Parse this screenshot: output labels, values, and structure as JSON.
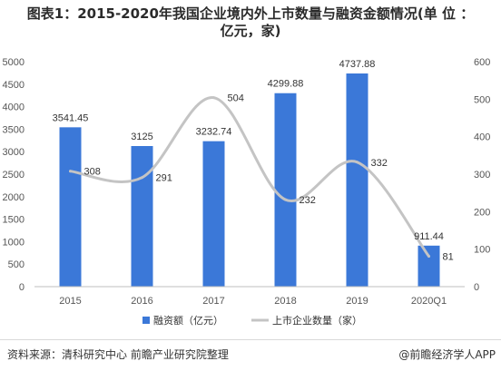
{
  "title_line1": "图表1：2015-2020年我国企业境内外上市数量与融资金额情况(单 位 ：",
  "title_line2": "亿元，家)",
  "source": "资料来源：清科研究中心 前瞻产业研究院整理",
  "credit": "@前瞻经济学人APP",
  "chart_data": {
    "type": "bar",
    "categories": [
      "2015",
      "2016",
      "2017",
      "2018",
      "2019",
      "2020Q1"
    ],
    "series": [
      {
        "name": "融资额（亿元）",
        "type": "bar",
        "axis": "left",
        "values": [
          3541.45,
          3125,
          3232.74,
          4299.88,
          4737.88,
          911.44
        ],
        "labels": [
          "3541.45",
          "3125",
          "3232.74",
          "4299.88",
          "4737.88",
          "911.44"
        ]
      },
      {
        "name": "上市企业数量（家）",
        "type": "line",
        "axis": "right",
        "smooth": true,
        "values": [
          308,
          291,
          504,
          232,
          332,
          81
        ],
        "labels": [
          "308",
          "291",
          "504",
          "232",
          "332",
          "81"
        ]
      }
    ],
    "y_left": {
      "ylim": [
        0,
        5000
      ],
      "ticks": [
        "0",
        "500",
        "1000",
        "1500",
        "2000",
        "2500",
        "3000",
        "3500",
        "4000",
        "4500",
        "5000"
      ]
    },
    "y_right": {
      "ylim": [
        0,
        600
      ],
      "ticks": [
        "0",
        "100",
        "200",
        "300",
        "400",
        "500",
        "600"
      ]
    },
    "colors": {
      "bar": "#3b78d8",
      "line": "#c4c4c4",
      "grid": "#e6e6e6"
    },
    "grid": false,
    "legend": "bottom"
  }
}
